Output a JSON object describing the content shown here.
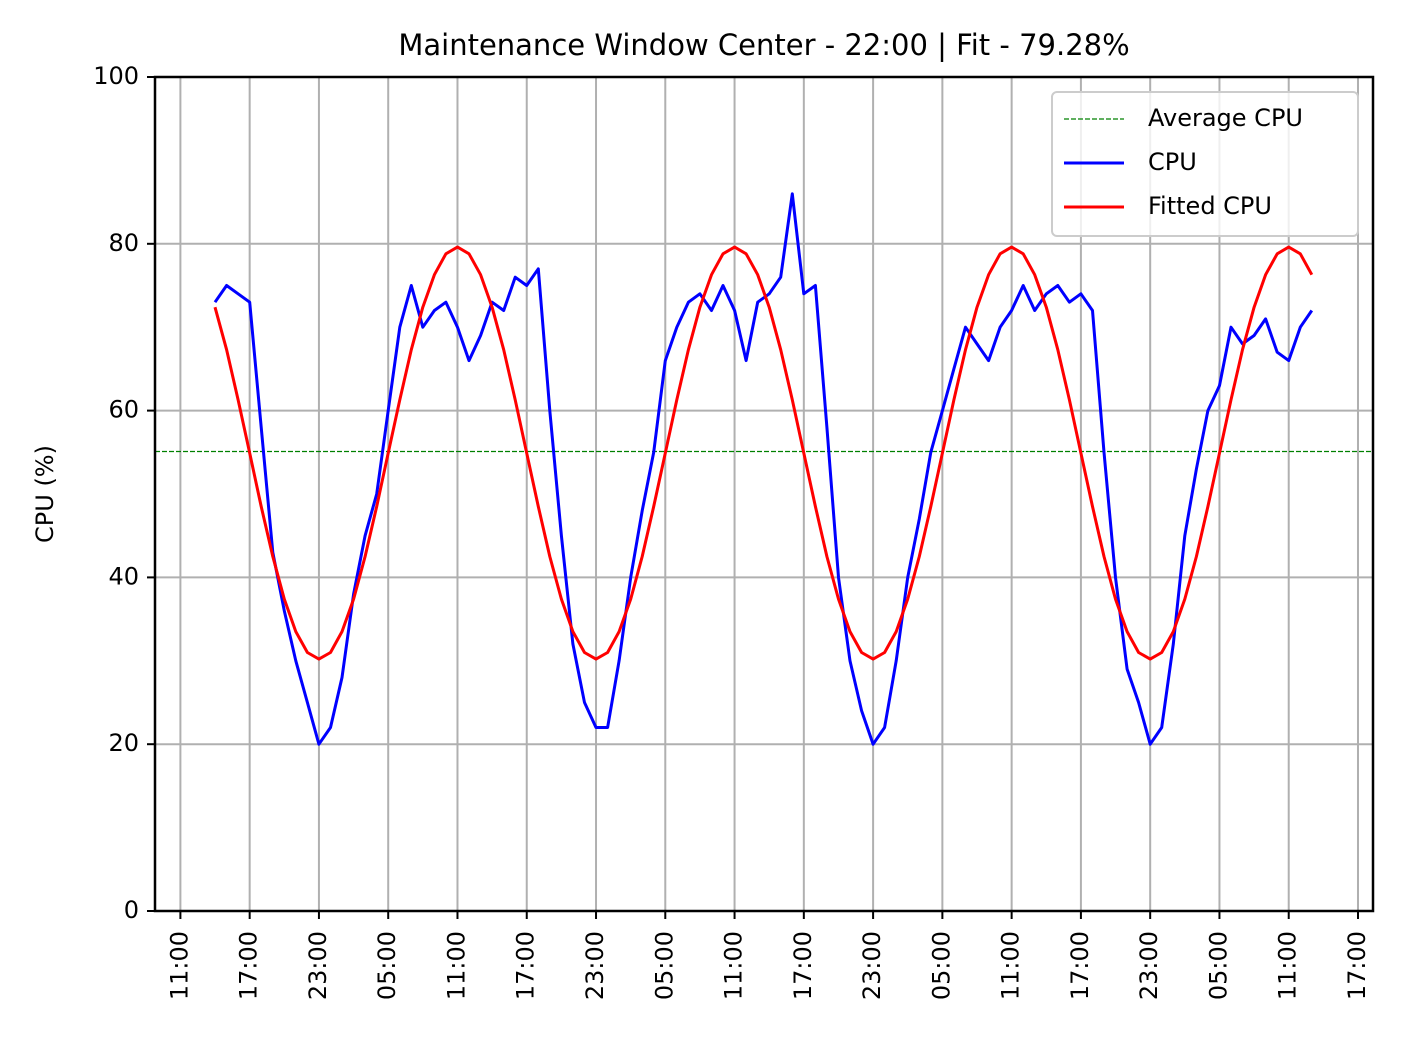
{
  "chart_data": {
    "type": "line",
    "title": "Maintenance Window Center - 22:00 | Fit - 79.28%",
    "ylabel": "CPU (%)",
    "x": [
      14,
      15,
      16,
      17,
      18,
      19,
      20,
      21,
      22,
      23,
      24,
      25,
      26,
      27,
      28,
      29,
      30,
      31,
      32,
      33,
      34,
      35,
      36,
      37,
      38,
      39,
      40,
      41,
      42,
      43,
      44,
      45,
      46,
      47,
      48,
      49,
      50,
      51,
      52,
      53,
      54,
      55,
      56,
      57,
      58,
      59,
      60,
      61,
      62,
      63,
      64,
      65,
      66,
      67,
      68,
      69,
      70,
      71,
      72,
      73,
      74,
      75,
      76,
      77,
      78,
      79,
      80,
      81,
      82,
      83,
      84,
      85,
      86,
      87,
      88,
      89,
      90,
      91,
      92,
      93,
      94,
      95,
      96,
      97,
      98,
      99,
      100,
      101,
      102,
      103,
      104,
      105,
      106,
      107,
      108,
      109
    ],
    "series": [
      {
        "name": "CPU",
        "color": "#0000ff",
        "width": 3,
        "values": [
          73,
          75,
          74,
          73,
          58,
          43,
          36,
          30,
          25,
          20,
          22,
          28,
          38,
          45,
          50,
          60,
          70,
          75,
          70,
          72,
          73,
          70,
          66,
          69,
          73,
          72,
          76,
          75,
          77,
          60,
          45,
          32,
          25,
          22,
          22,
          30,
          40,
          48,
          55,
          66,
          70,
          73,
          74,
          72,
          75,
          72,
          66,
          73,
          74,
          76,
          86,
          74,
          75,
          58,
          40,
          30,
          24,
          20,
          22,
          30,
          40,
          47,
          55,
          60,
          65,
          70,
          68,
          66,
          70,
          72,
          75,
          72,
          74,
          75,
          73,
          74,
          72,
          55,
          40,
          29,
          25,
          20,
          22,
          32,
          45,
          53,
          60,
          63,
          70,
          68,
          69,
          71,
          67,
          66,
          70,
          72
        ]
      },
      {
        "name": "Fitted CPU",
        "color": "#ff0000",
        "width": 3,
        "values": [
          72.4,
          67.3,
          61.3,
          54.9,
          48.5,
          42.5,
          37.4,
          33.5,
          31.0,
          30.2,
          31.0,
          33.5,
          37.4,
          42.5,
          48.5,
          54.9,
          61.3,
          67.3,
          72.4,
          76.3,
          78.8,
          79.6,
          78.8,
          76.3,
          72.4,
          67.3,
          61.3,
          54.9,
          48.5,
          42.5,
          37.4,
          33.5,
          31.0,
          30.2,
          31.0,
          33.5,
          37.4,
          42.5,
          48.5,
          54.9,
          61.3,
          67.3,
          72.4,
          76.3,
          78.8,
          79.6,
          78.8,
          76.3,
          72.4,
          67.3,
          61.3,
          54.9,
          48.5,
          42.5,
          37.4,
          33.5,
          31.0,
          30.2,
          31.0,
          33.5,
          37.4,
          42.5,
          48.5,
          54.9,
          61.3,
          67.3,
          72.4,
          76.3,
          78.8,
          79.6,
          78.8,
          76.3,
          72.4,
          67.3,
          61.3,
          54.9,
          48.5,
          42.5,
          37.4,
          33.5,
          31.0,
          30.2,
          31.0,
          33.5,
          37.4,
          42.5,
          48.5,
          54.9,
          61.3,
          67.3,
          72.4,
          76.3,
          78.8,
          79.6,
          78.8,
          76.3
        ]
      }
    ],
    "hlines": [
      {
        "name": "Average CPU",
        "value": 55.1,
        "color": "#008000"
      }
    ],
    "xlim": [
      8.8,
      114.3
    ],
    "ylim": [
      0,
      100
    ],
    "yticks": [
      0,
      20,
      40,
      60,
      80,
      100
    ],
    "xticks": [
      {
        "value": 11,
        "label": "11:00"
      },
      {
        "value": 17,
        "label": "17:00"
      },
      {
        "value": 23,
        "label": "23:00"
      },
      {
        "value": 29,
        "label": "05:00"
      },
      {
        "value": 35,
        "label": "11:00"
      },
      {
        "value": 41,
        "label": "17:00"
      },
      {
        "value": 47,
        "label": "23:00"
      },
      {
        "value": 53,
        "label": "05:00"
      },
      {
        "value": 59,
        "label": "11:00"
      },
      {
        "value": 65,
        "label": "17:00"
      },
      {
        "value": 71,
        "label": "23:00"
      },
      {
        "value": 77,
        "label": "05:00"
      },
      {
        "value": 83,
        "label": "11:00"
      },
      {
        "value": 89,
        "label": "17:00"
      },
      {
        "value": 95,
        "label": "23:00"
      },
      {
        "value": 101,
        "label": "05:00"
      },
      {
        "value": 107,
        "label": "11:00"
      },
      {
        "value": 113,
        "label": "17:00"
      }
    ],
    "grid": true,
    "legend": "upper right"
  }
}
